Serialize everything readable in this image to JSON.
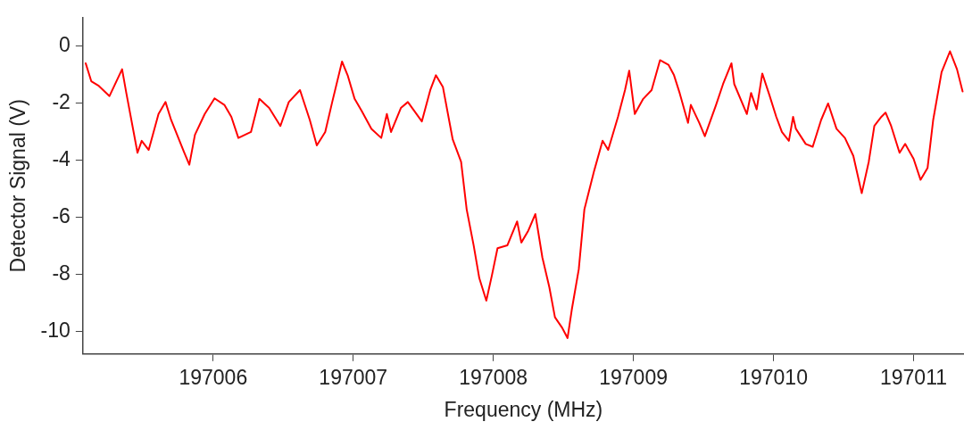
{
  "chart_data": {
    "type": "line",
    "xlabel": "Frequency (MHz)",
    "ylabel": "Detector Signal (V)",
    "xlim": [
      197005.07,
      197011.36
    ],
    "xticks": [
      197006,
      197007,
      197008,
      197009,
      197010,
      197011
    ],
    "ylim": [
      -10.8,
      1.0
    ],
    "yticks": [
      -10,
      -8,
      -6,
      -4,
      -2,
      0
    ],
    "legend": false,
    "marker": "none",
    "line_style": "solid",
    "series": [
      {
        "color": "#ff0000",
        "x": [
          197005.09,
          197005.13,
          197005.18,
          197005.26,
          197005.35,
          197005.38,
          197005.46,
          197005.49,
          197005.54,
          197005.61,
          197005.66,
          197005.7,
          197005.79,
          197005.83,
          197005.87,
          197005.94,
          197006.01,
          197006.08,
          197006.13,
          197006.18,
          197006.27,
          197006.33,
          197006.4,
          197006.48,
          197006.54,
          197006.62,
          197006.69,
          197006.74,
          197006.8,
          197006.85,
          197006.92,
          197006.96,
          197007.01,
          197007.06,
          197007.13,
          197007.2,
          197007.24,
          197007.27,
          197007.34,
          197007.39,
          197007.49,
          197007.55,
          197007.59,
          197007.64,
          197007.71,
          197007.77,
          197007.81,
          197007.86,
          197007.9,
          197007.95,
          197007.99,
          197008.03,
          197008.1,
          197008.17,
          197008.2,
          197008.25,
          197008.3,
          197008.35,
          197008.4,
          197008.44,
          197008.49,
          197008.53,
          197008.56,
          197008.61,
          197008.65,
          197008.72,
          197008.78,
          197008.82,
          197008.89,
          197008.94,
          197008.97,
          197009.01,
          197009.07,
          197009.13,
          197009.19,
          197009.25,
          197009.29,
          197009.33,
          197009.39,
          197009.41,
          197009.47,
          197009.51,
          197009.59,
          197009.64,
          197009.7,
          197009.72,
          197009.81,
          197009.84,
          197009.88,
          197009.92,
          197009.97,
          197010.02,
          197010.06,
          197010.11,
          197010.14,
          197010.16,
          197010.23,
          197010.28,
          197010.34,
          197010.39,
          197010.45,
          197010.51,
          197010.57,
          197010.63,
          197010.68,
          197010.72,
          197010.77,
          197010.8,
          197010.84,
          197010.9,
          197010.94,
          197011.0,
          197011.05,
          197011.1,
          197011.14,
          197011.2,
          197011.26,
          197011.31,
          197011.35
        ],
        "values": [
          -0.6,
          -1.23,
          -1.38,
          -1.75,
          -0.81,
          -1.64,
          -3.74,
          -3.32,
          -3.64,
          -2.38,
          -1.96,
          -2.59,
          -3.69,
          -4.16,
          -3.11,
          -2.38,
          -1.83,
          -2.06,
          -2.48,
          -3.22,
          -3.01,
          -1.85,
          -2.17,
          -2.8,
          -1.96,
          -1.54,
          -2.59,
          -3.48,
          -3.01,
          -1.96,
          -0.54,
          -1.02,
          -1.85,
          -2.27,
          -2.9,
          -3.22,
          -2.38,
          -3.01,
          -2.17,
          -1.96,
          -2.64,
          -1.54,
          -1.02,
          -1.43,
          -3.27,
          -4.06,
          -5.73,
          -7.0,
          -8.14,
          -8.93,
          -8.04,
          -7.09,
          -6.99,
          -6.15,
          -6.89,
          -6.47,
          -5.89,
          -7.41,
          -8.46,
          -9.51,
          -9.87,
          -10.24,
          -9.25,
          -7.83,
          -5.73,
          -4.37,
          -3.32,
          -3.64,
          -2.48,
          -1.54,
          -0.86,
          -2.38,
          -1.85,
          -1.54,
          -0.49,
          -0.65,
          -1.02,
          -1.64,
          -2.69,
          -2.06,
          -2.69,
          -3.16,
          -2.06,
          -1.33,
          -0.6,
          -1.33,
          -2.38,
          -1.64,
          -2.22,
          -0.96,
          -1.7,
          -2.48,
          -3.01,
          -3.32,
          -2.48,
          -2.9,
          -3.43,
          -3.53,
          -2.59,
          -2.01,
          -2.9,
          -3.22,
          -3.85,
          -5.16,
          -4.06,
          -2.8,
          -2.48,
          -2.33,
          -2.8,
          -3.74,
          -3.43,
          -3.95,
          -4.69,
          -4.27,
          -2.59,
          -0.91,
          -0.18,
          -0.81,
          -1.59
        ]
      }
    ]
  }
}
